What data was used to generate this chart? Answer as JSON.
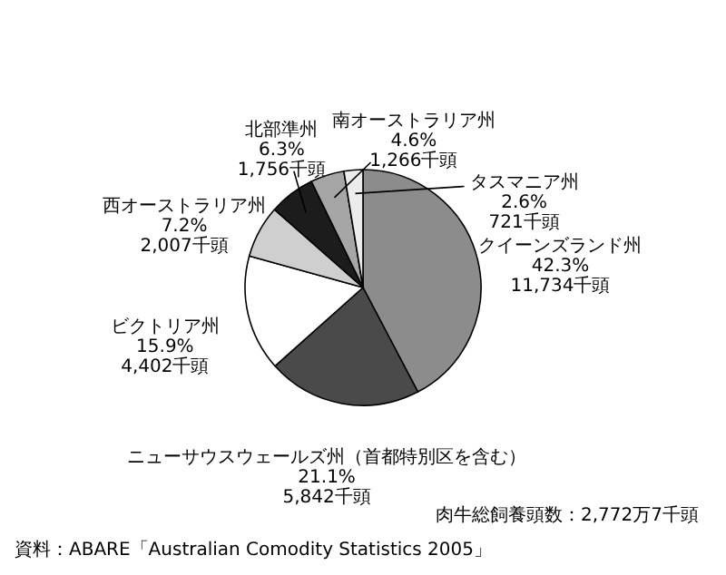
{
  "chart_data": {
    "type": "pie",
    "categories": [
      "クイーンズランド州",
      "ニューサウスウェールズ州（首都特別区を含む）",
      "ビクトリア州",
      "西オーストラリア州",
      "北部準州",
      "南オーストラリア州",
      "タスマニア州"
    ],
    "values": [
      42.3,
      21.1,
      15.9,
      7.2,
      6.3,
      4.6,
      2.6
    ],
    "value_labels": [
      "42.3%\n11,734千頭",
      "21.1%\n5,842千頭",
      "15.9%\n4,402千頭",
      "7.2%\n2,007千頭",
      "6.3%\n1,756千頭",
      "4.6%\n1,266千頭",
      "2.6%\n721千頭"
    ],
    "colors": [
      "#8c8c8c",
      "#4a4a4a",
      "#ffffff",
      "#cfcfcf",
      "#1c1c1c",
      "#a6a6a6",
      "#ececec"
    ],
    "annotations": [
      "肉牛総飼養頭数：2,772万7千頭",
      "資料：ABARE「Australian Comodity Statistics 2005」"
    ]
  }
}
